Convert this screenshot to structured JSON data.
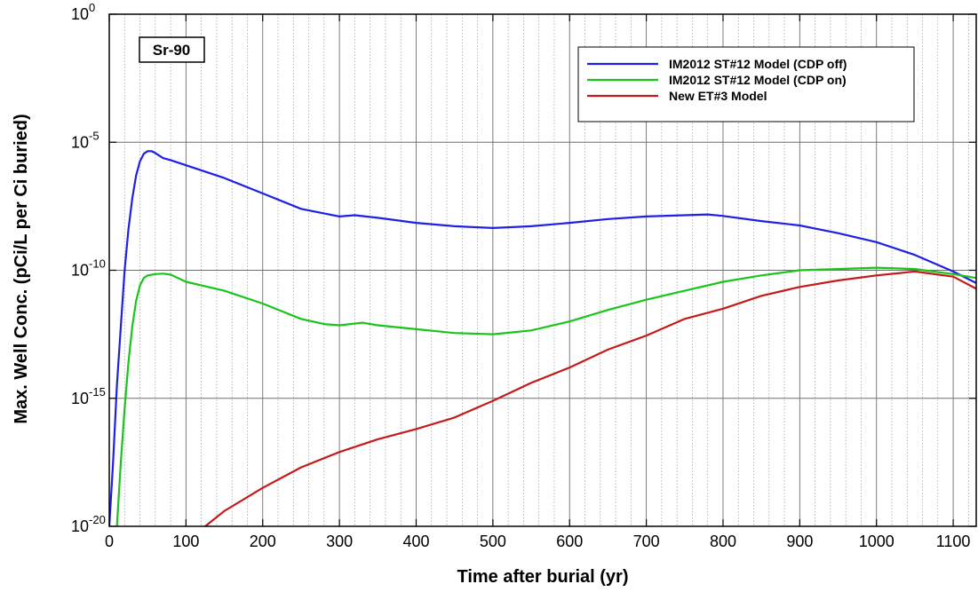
{
  "chart_data": {
    "type": "line",
    "xlabel": "Time after burial (yr)",
    "ylabel": "Max. Well Conc. (pCi/L per Ci buried)",
    "xlim": [
      0,
      1130
    ],
    "ylim_exponent": [
      -20,
      0
    ],
    "yscale": "log",
    "grid": true,
    "legend_position": "top-right",
    "annotation": "Sr-90",
    "x_ticks": [
      0,
      100,
      200,
      300,
      400,
      500,
      600,
      700,
      800,
      900,
      1000,
      1100
    ],
    "x_tick_labels": [
      "0",
      "100",
      "200",
      "300",
      "400",
      "500",
      "600",
      "700",
      "800",
      "900",
      "1000",
      "1100"
    ],
    "y_ticks": [
      {
        "base": "10",
        "exponent": "-20",
        "value": -20
      },
      {
        "base": "10",
        "exponent": "-15",
        "value": -15
      },
      {
        "base": "10",
        "exponent": "-10",
        "value": -10
      },
      {
        "base": "10",
        "exponent": "-5",
        "value": -5
      },
      {
        "base": "10",
        "exponent": "0",
        "value": 0
      }
    ],
    "series": [
      {
        "name": "IM2012 ST#12 Model (CDP off)",
        "color": "#1f1fe6",
        "points": [
          [
            0,
            -20
          ],
          [
            5,
            -17.5
          ],
          [
            10,
            -14.5
          ],
          [
            15,
            -12.2
          ],
          [
            20,
            -10
          ],
          [
            25,
            -8.4
          ],
          [
            30,
            -7.2
          ],
          [
            35,
            -6.3
          ],
          [
            40,
            -5.75
          ],
          [
            45,
            -5.45
          ],
          [
            50,
            -5.35
          ],
          [
            55,
            -5.35
          ],
          [
            60,
            -5.42
          ],
          [
            70,
            -5.62
          ],
          [
            80,
            -5.7
          ],
          [
            100,
            -5.9
          ],
          [
            150,
            -6.4
          ],
          [
            200,
            -7.0
          ],
          [
            250,
            -7.6
          ],
          [
            300,
            -7.9
          ],
          [
            320,
            -7.85
          ],
          [
            350,
            -7.95
          ],
          [
            400,
            -8.15
          ],
          [
            450,
            -8.28
          ],
          [
            500,
            -8.35
          ],
          [
            550,
            -8.28
          ],
          [
            600,
            -8.15
          ],
          [
            650,
            -8.0
          ],
          [
            700,
            -7.9
          ],
          [
            750,
            -7.85
          ],
          [
            780,
            -7.82
          ],
          [
            800,
            -7.88
          ],
          [
            850,
            -8.08
          ],
          [
            900,
            -8.25
          ],
          [
            950,
            -8.55
          ],
          [
            1000,
            -8.9
          ],
          [
            1050,
            -9.4
          ],
          [
            1100,
            -10.05
          ],
          [
            1130,
            -10.5
          ]
        ]
      },
      {
        "name": "IM2012 ST#12 Model (CDP on)",
        "color": "#1bc41b",
        "points": [
          [
            10,
            -20
          ],
          [
            12,
            -19
          ],
          [
            15,
            -17.5
          ],
          [
            20,
            -15.4
          ],
          [
            25,
            -13.6
          ],
          [
            30,
            -12.2
          ],
          [
            35,
            -11.2
          ],
          [
            40,
            -10.6
          ],
          [
            45,
            -10.3
          ],
          [
            50,
            -10.2
          ],
          [
            60,
            -10.15
          ],
          [
            70,
            -10.13
          ],
          [
            80,
            -10.17
          ],
          [
            100,
            -10.45
          ],
          [
            150,
            -10.8
          ],
          [
            200,
            -11.3
          ],
          [
            250,
            -11.9
          ],
          [
            280,
            -12.1
          ],
          [
            300,
            -12.15
          ],
          [
            330,
            -12.05
          ],
          [
            350,
            -12.15
          ],
          [
            400,
            -12.3
          ],
          [
            450,
            -12.45
          ],
          [
            500,
            -12.5
          ],
          [
            550,
            -12.35
          ],
          [
            600,
            -12.0
          ],
          [
            650,
            -11.55
          ],
          [
            700,
            -11.15
          ],
          [
            750,
            -10.8
          ],
          [
            800,
            -10.45
          ],
          [
            850,
            -10.2
          ],
          [
            900,
            -10.0
          ],
          [
            950,
            -9.95
          ],
          [
            1000,
            -9.9
          ],
          [
            1050,
            -9.95
          ],
          [
            1100,
            -10.15
          ],
          [
            1130,
            -10.3
          ]
        ]
      },
      {
        "name": "New ET#3 Model",
        "color": "#c41a1a",
        "points": [
          [
            125,
            -20
          ],
          [
            150,
            -19.4
          ],
          [
            200,
            -18.5
          ],
          [
            250,
            -17.7
          ],
          [
            300,
            -17.1
          ],
          [
            350,
            -16.6
          ],
          [
            400,
            -16.2
          ],
          [
            450,
            -15.75
          ],
          [
            500,
            -15.1
          ],
          [
            550,
            -14.4
          ],
          [
            600,
            -13.8
          ],
          [
            650,
            -13.1
          ],
          [
            700,
            -12.55
          ],
          [
            750,
            -11.9
          ],
          [
            800,
            -11.5
          ],
          [
            850,
            -11.0
          ],
          [
            900,
            -10.65
          ],
          [
            950,
            -10.4
          ],
          [
            1000,
            -10.2
          ],
          [
            1050,
            -10.05
          ],
          [
            1100,
            -10.25
          ],
          [
            1130,
            -10.72
          ]
        ]
      }
    ]
  }
}
